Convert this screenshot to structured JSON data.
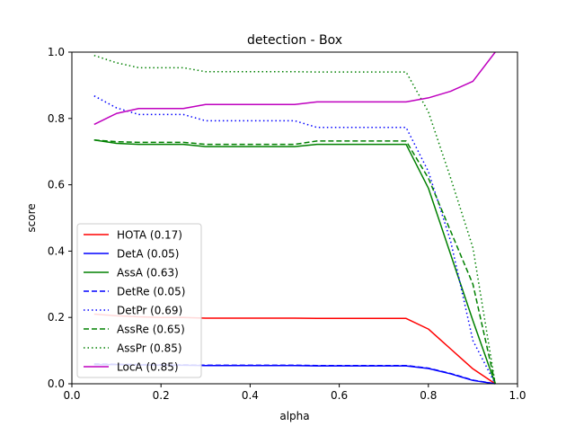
{
  "chart_data": {
    "type": "line",
    "title": "detection - Box",
    "xlabel": "alpha",
    "ylabel": "score",
    "xlim": [
      0.0,
      1.0
    ],
    "ylim": [
      0.0,
      1.0
    ],
    "xticks": [
      "0.0",
      "0.2",
      "0.4",
      "0.6",
      "0.8",
      "1.0"
    ],
    "yticks": [
      "0.0",
      "0.2",
      "0.4",
      "0.6",
      "0.8",
      "1.0"
    ],
    "grid": false,
    "legend_position": "lower-left",
    "x": [
      0.05,
      0.1,
      0.15,
      0.2,
      0.25,
      0.3,
      0.35,
      0.4,
      0.45,
      0.5,
      0.55,
      0.6,
      0.65,
      0.7,
      0.75,
      0.8,
      0.85,
      0.9,
      0.95
    ],
    "series": [
      {
        "name": "HOTA",
        "legend_label": "HOTA (0.17)",
        "color": "#ff0000",
        "dash": "solid",
        "values": [
          0.21,
          0.205,
          0.202,
          0.2,
          0.2,
          0.198,
          0.198,
          0.198,
          0.198,
          0.198,
          0.197,
          0.197,
          0.197,
          0.197,
          0.197,
          0.165,
          0.105,
          0.045,
          0.0
        ]
      },
      {
        "name": "DetA",
        "legend_label": "DetA (0.05)",
        "color": "#0000ff",
        "dash": "solid",
        "values": [
          0.058,
          0.058,
          0.057,
          0.056,
          0.056,
          0.055,
          0.055,
          0.055,
          0.055,
          0.055,
          0.054,
          0.054,
          0.054,
          0.054,
          0.054,
          0.046,
          0.03,
          0.01,
          0.0
        ]
      },
      {
        "name": "AssA",
        "legend_label": "AssA (0.63)",
        "color": "#008000",
        "dash": "solid",
        "values": [
          0.735,
          0.725,
          0.722,
          0.722,
          0.722,
          0.715,
          0.715,
          0.715,
          0.715,
          0.715,
          0.722,
          0.722,
          0.722,
          0.722,
          0.722,
          0.59,
          0.39,
          0.19,
          0.0
        ]
      },
      {
        "name": "DetRe",
        "legend_label": "DetRe (0.05)",
        "color": "#0000ff",
        "dash": "dashed",
        "values": [
          0.06,
          0.059,
          0.058,
          0.057,
          0.057,
          0.056,
          0.056,
          0.056,
          0.056,
          0.056,
          0.055,
          0.055,
          0.055,
          0.055,
          0.055,
          0.047,
          0.031,
          0.011,
          0.0
        ]
      },
      {
        "name": "DetPr",
        "legend_label": "DetPr (0.69)",
        "color": "#0000ff",
        "dash": "dotted",
        "values": [
          0.868,
          0.832,
          0.812,
          0.812,
          0.812,
          0.793,
          0.793,
          0.793,
          0.793,
          0.793,
          0.773,
          0.773,
          0.773,
          0.773,
          0.773,
          0.64,
          0.43,
          0.13,
          0.0
        ]
      },
      {
        "name": "AssRe",
        "legend_label": "AssRe (0.65)",
        "color": "#008000",
        "dash": "dashed",
        "values": [
          0.735,
          0.73,
          0.728,
          0.728,
          0.728,
          0.722,
          0.722,
          0.722,
          0.722,
          0.722,
          0.732,
          0.732,
          0.732,
          0.732,
          0.732,
          0.62,
          0.46,
          0.3,
          0.0
        ]
      },
      {
        "name": "AssPr",
        "legend_label": "AssPr (0.85)",
        "color": "#008000",
        "dash": "dotted",
        "values": [
          0.99,
          0.968,
          0.953,
          0.953,
          0.953,
          0.941,
          0.941,
          0.941,
          0.941,
          0.941,
          0.94,
          0.94,
          0.94,
          0.94,
          0.94,
          0.82,
          0.62,
          0.41,
          0.0
        ]
      },
      {
        "name": "LocA",
        "legend_label": "LocA (0.85)",
        "color": "#bf00bf",
        "dash": "solid",
        "values": [
          0.782,
          0.815,
          0.83,
          0.83,
          0.83,
          0.842,
          0.842,
          0.842,
          0.842,
          0.842,
          0.85,
          0.85,
          0.85,
          0.85,
          0.85,
          0.862,
          0.882,
          0.912,
          1.0
        ]
      }
    ]
  }
}
